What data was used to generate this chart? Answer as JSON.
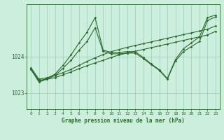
{
  "background_color": "#cceedd",
  "plot_bg_color": "#cceedd",
  "grid_color": "#99ccbb",
  "line_color": "#2d6a2d",
  "xlabel": "Graphe pression niveau de la mer (hPa)",
  "x_ticks": [
    0,
    1,
    2,
    3,
    4,
    5,
    6,
    7,
    8,
    9,
    10,
    11,
    12,
    13,
    14,
    15,
    16,
    17,
    18,
    19,
    20,
    21,
    22,
    23
  ],
  "ylim": [
    1022.55,
    1025.45
  ],
  "yticks": [
    1023,
    1024
  ],
  "line1": [
    1023.65,
    1023.35,
    1023.38,
    1023.42,
    1023.5,
    1023.58,
    1023.67,
    1023.75,
    1023.83,
    1023.9,
    1023.98,
    1024.05,
    1024.1,
    1024.15,
    1024.2,
    1024.25,
    1024.3,
    1024.35,
    1024.4,
    1024.45,
    1024.5,
    1024.55,
    1024.6,
    1024.7
  ],
  "line2": [
    1023.7,
    1023.38,
    1023.42,
    1023.48,
    1023.56,
    1023.65,
    1023.76,
    1023.87,
    1023.97,
    1024.06,
    1024.14,
    1024.2,
    1024.26,
    1024.31,
    1024.36,
    1024.41,
    1024.46,
    1024.51,
    1024.56,
    1024.61,
    1024.66,
    1024.71,
    1024.76,
    1024.85
  ],
  "line3": [
    1023.65,
    1023.3,
    1023.38,
    1023.48,
    1023.68,
    1023.9,
    1024.18,
    1024.42,
    1024.8,
    1024.15,
    1024.08,
    1024.08,
    1024.1,
    1024.1,
    1023.95,
    1023.78,
    1023.62,
    1023.38,
    1023.88,
    1024.14,
    1024.28,
    1024.42,
    1025.0,
    1025.1
  ],
  "line4": [
    1023.68,
    1023.32,
    1023.4,
    1023.52,
    1023.76,
    1024.05,
    1024.38,
    1024.68,
    1025.08,
    1024.18,
    1024.12,
    1024.12,
    1024.14,
    1024.14,
    1023.98,
    1023.8,
    1023.64,
    1023.4,
    1023.92,
    1024.22,
    1024.38,
    1024.55,
    1025.08,
    1025.15
  ]
}
